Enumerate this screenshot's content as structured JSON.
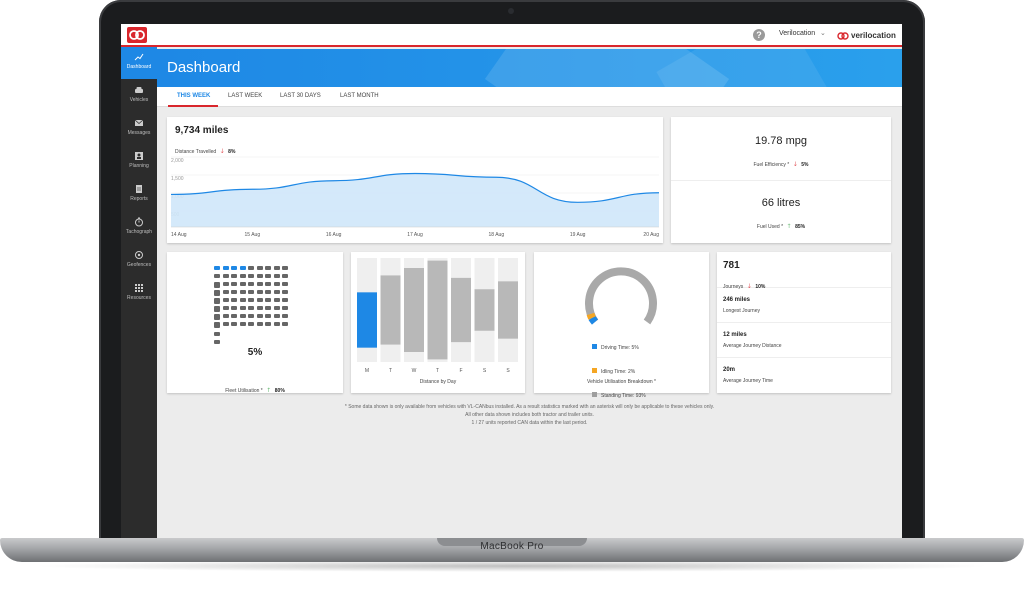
{
  "device": {
    "label": "MacBook Pro"
  },
  "topbar": {
    "user": "Verilocation",
    "brand": "verilocation",
    "brand_color": "#d9262c"
  },
  "sidebar": {
    "items": [
      {
        "label": "Dashboard",
        "icon": "trend-icon"
      },
      {
        "label": "Vehicles",
        "icon": "car-icon"
      },
      {
        "label": "Messages",
        "icon": "mail-icon"
      },
      {
        "label": "Planning",
        "icon": "person-icon"
      },
      {
        "label": "Reports",
        "icon": "document-icon"
      },
      {
        "label": "Tachograph",
        "icon": "timer-icon"
      },
      {
        "label": "Geofences",
        "icon": "geofence-icon"
      },
      {
        "label": "Resources",
        "icon": "grid-icon"
      }
    ]
  },
  "page": {
    "title": "Dashboard"
  },
  "tabs": [
    "THIS WEEK",
    "LAST WEEK",
    "LAST 30 DAYS",
    "LAST MONTH"
  ],
  "distance": {
    "value": "9,734 miles",
    "label": "Distance Travelled",
    "change": "8%",
    "chart_data": {
      "type": "area",
      "x": [
        "14 Aug",
        "15 Aug",
        "16 Aug",
        "17 Aug",
        "18 Aug",
        "19 Aug",
        "20 Aug"
      ],
      "values": [
        950,
        1100,
        1350,
        1560,
        1450,
        720,
        1000
      ],
      "yticks": [
        "2,000",
        "1,500",
        "1,000",
        "500"
      ],
      "ylim": [
        0,
        2100
      ],
      "color": "#1e88e5"
    }
  },
  "efficiency": {
    "value": "19.78 mpg",
    "label": "Fuel Efficiency *",
    "change": "5%"
  },
  "fuel": {
    "value": "66 litres",
    "label": "Fuel Used *",
    "change": "85%"
  },
  "fleet": {
    "value": "5%",
    "label": "Fleet Utilisation *",
    "change": "80%"
  },
  "distance_by_day": {
    "label": "Distance by Day",
    "chart_data": {
      "type": "bar",
      "categories": [
        "M",
        "T",
        "W",
        "T",
        "F",
        "S",
        "S"
      ],
      "values": [
        0.56,
        0.7,
        0.85,
        1.0,
        0.65,
        0.42,
        0.58
      ]
    }
  },
  "utilisation": {
    "label": "Vehicle Utilisation Breakdown *",
    "legend": [
      {
        "label": "Driving Time: 5%",
        "color": "#1e88e5"
      },
      {
        "label": "Idling Time: 2%",
        "color": "#f5a623"
      },
      {
        "label": "Standing Time: 93%",
        "color": "#9e9e9e"
      }
    ]
  },
  "journeys": {
    "count": "781",
    "count_label": "Journeys",
    "count_change": "10%",
    "longest": "246 miles",
    "longest_label": "Longest Journey",
    "avg_distance": "12 miles",
    "avg_distance_label": "Average Journey Distance",
    "avg_time": "20m",
    "avg_time_label": "Average Journey Time"
  },
  "footnotes": [
    "* Some data shown is only available from vehicles with VL-CANbus installed. As a result statistics marked with an asterisk will only be applicable to these vehicles only.",
    "All other data shown includes both tractor and trailer units.",
    "1 / 27 units reported CAN data within the last period."
  ]
}
